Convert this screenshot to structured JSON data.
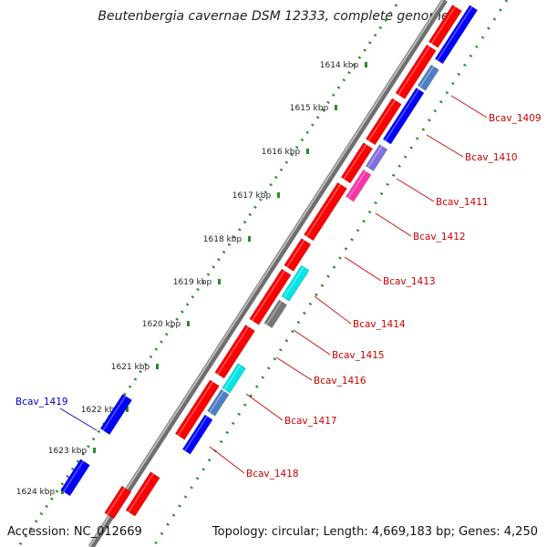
{
  "title": "Beutenbergia cavernae DSM 12333, complete genome",
  "accession": "Accession: NC_012669",
  "summary": "Topology: circular; Length: 4,669,183 bp; Genes: 4,250",
  "colors": {
    "forward": "#ff0000",
    "reverse": "#0000ff",
    "reverse_light": "#4d7fc4",
    "cyan": "#00e5e5",
    "purple": "#7f6fe0",
    "magenta": "#ff33aa",
    "gray": "#777777",
    "backbone": "#9a9a9a",
    "ticks": "#2a8a2a",
    "label_forward": "#cc0000",
    "label_reverse": "#0000cc"
  },
  "kbp_ticks": [
    "1614 kbp",
    "1615 kbp",
    "1616 kbp",
    "1617 kbp",
    "1618 kbp",
    "1619 kbp",
    "1620 kbp",
    "1621 kbp",
    "1622 kbp",
    "1623 kbp",
    "1624 kbp"
  ],
  "genes": [
    {
      "name": "Bcav_1409",
      "strand": "reverse",
      "color": "reverse_light",
      "labeled": true
    },
    {
      "name": "Bcav_1410",
      "strand": "reverse",
      "color": "reverse",
      "labeled": true
    },
    {
      "name": "Bcav_1411",
      "strand": "reverse",
      "color": "purple",
      "labeled": true
    },
    {
      "name": "Bcav_1412",
      "strand": "reverse",
      "color": "magenta",
      "labeled": true
    },
    {
      "name": "Bcav_1413",
      "strand": "forward",
      "color": "forward",
      "labeled": true
    },
    {
      "name": "Bcav_1414",
      "strand": "reverse",
      "color": "cyan",
      "labeled": true
    },
    {
      "name": "Bcav_1415",
      "strand": "reverse",
      "color": "gray",
      "labeled": true
    },
    {
      "name": "Bcav_1416",
      "strand": "forward",
      "color": "forward",
      "labeled": true
    },
    {
      "name": "Bcav_1417",
      "strand": "reverse",
      "color": "cyan",
      "labeled": true
    },
    {
      "name": "Bcav_1418",
      "strand": "reverse",
      "color": "reverse",
      "labeled": true
    },
    {
      "name": "Bcav_1419",
      "strand": "reverse",
      "color": "reverse",
      "labeled": true
    }
  ]
}
